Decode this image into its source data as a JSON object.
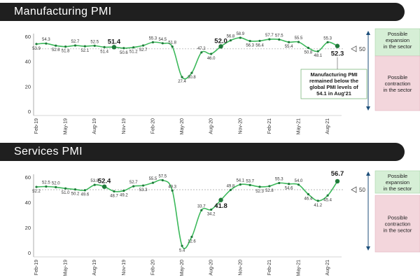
{
  "colors": {
    "line": "#3cb95b",
    "marker": "#1f7a3a",
    "expansion_bg": "#d6efd6",
    "contraction_bg": "#f3d6dc",
    "arrow": "#1c4e7a",
    "ref_line": "#a0a0a0"
  },
  "chart_data": [
    {
      "type": "line",
      "title": "Manufacturing PMI",
      "xlabel": "",
      "ylabel": "",
      "ylim": [
        0,
        60
      ],
      "yticks": [
        "0",
        "20",
        "40",
        "60"
      ],
      "grid": false,
      "reference_value": 50,
      "reference_label": "50",
      "xtick_labels": [
        "Feb-19",
        "May-19",
        "Aug-19",
        "Nov-19",
        "Feb-20",
        "May-20",
        "Aug-20",
        "Nov-20",
        "Feb-21",
        "May-21",
        "Aug-21"
      ],
      "values": [
        53.9,
        54.3,
        52.6,
        51.8,
        52.7,
        52.1,
        52.5,
        51.4,
        51.4,
        50.6,
        51.2,
        52.7,
        55.3,
        54.5,
        51.8,
        27.4,
        30.8,
        47.2,
        46.0,
        52.0,
        56.8,
        58.9,
        56.3,
        56.4,
        57.7,
        57.5,
        55.4,
        55.5,
        50.8,
        48.1,
        55.3,
        52.3
      ],
      "value_labels": [
        "53.9",
        "54.3",
        "52.6",
        "51.8",
        "52.7",
        "52.1",
        "52.5",
        "51.4",
        "51.4",
        "50.6",
        "51.2",
        "52.7",
        "55.3",
        "54.5",
        "51.8",
        "27.4",
        "30.8",
        "47.2",
        "46.0",
        "52.0",
        "56.8",
        "58.9",
        "56.3",
        "56.4",
        "57.7",
        "57.5",
        "55.4",
        "55.5",
        "50.8",
        "48.1",
        "55.3",
        "52.3"
      ],
      "highlight_indices": [
        8,
        19,
        31
      ],
      "expansion_label": [
        "Possible",
        "expansion",
        "in the sector"
      ],
      "contraction_label": [
        "Possible",
        "contraction",
        "in the sector"
      ],
      "annotation": [
        "Manufacturing PMI",
        "remained below the",
        "global PMI levels of",
        "54.1 in Aug'21"
      ]
    },
    {
      "type": "line",
      "title": "Services PMI",
      "xlabel": "",
      "ylabel": "",
      "ylim": [
        0,
        60
      ],
      "yticks": [
        "0",
        "20",
        "40",
        "60"
      ],
      "grid": false,
      "reference_value": 50,
      "reference_label": "50",
      "xtick_labels": [
        "Feb-19",
        "May-19",
        "Aug-19",
        "Nov-19",
        "Feb-20",
        "May-20",
        "Aug-20",
        "Nov-20",
        "Feb-21",
        "May-21",
        "Aug-21"
      ],
      "values": [
        52.2,
        52.5,
        52.0,
        51.0,
        50.2,
        49.6,
        53.8,
        52.4,
        48.7,
        49.2,
        52.7,
        53.3,
        55.5,
        57.5,
        49.3,
        5.4,
        12.6,
        33.7,
        34.2,
        41.8,
        49.8,
        54.1,
        53.7,
        52.3,
        52.8,
        55.3,
        54.6,
        54.0,
        46.4,
        41.2,
        45.4,
        56.7
      ],
      "value_labels": [
        "52.2",
        "52.5",
        "52.0",
        "51.0",
        "50.2",
        "49.6",
        "53.8",
        "52.4",
        "48.7",
        "49.2",
        "52.7",
        "53.3",
        "55.5",
        "57.5",
        "49.3",
        "5.4",
        "12.6",
        "33.7",
        "34.2",
        "41.8",
        "49.8",
        "54.1",
        "53.7",
        "52.3",
        "52.8",
        "55.3",
        "54.6",
        "54.0",
        "46.4",
        "41.2",
        "45.4",
        "56.7"
      ],
      "highlight_indices": [
        7,
        19,
        31
      ],
      "expansion_label": [
        "Possible",
        "expansion",
        "in the sector"
      ],
      "contraction_label": [
        "Possible",
        "contraction",
        "in the sector"
      ]
    }
  ]
}
